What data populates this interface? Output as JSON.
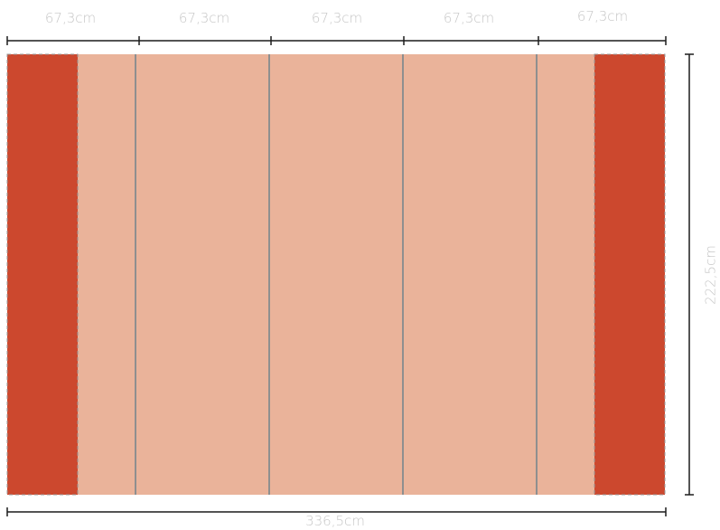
{
  "panel_widths": {
    "panel_1": "67,3cm",
    "panel_2": "67,3cm",
    "panel_3": "67,3cm",
    "panel_4": "67,3cm",
    "panel_5": "67,3cm"
  },
  "total_width": "336,5cm",
  "total_height": "222,5cm",
  "colors": {
    "wall": "#eab39a",
    "bleed": "#cc482e",
    "divider": "#8f8f8f",
    "dimension_line": "#1c1c1c",
    "dimension_text": "#c6c6c6"
  }
}
